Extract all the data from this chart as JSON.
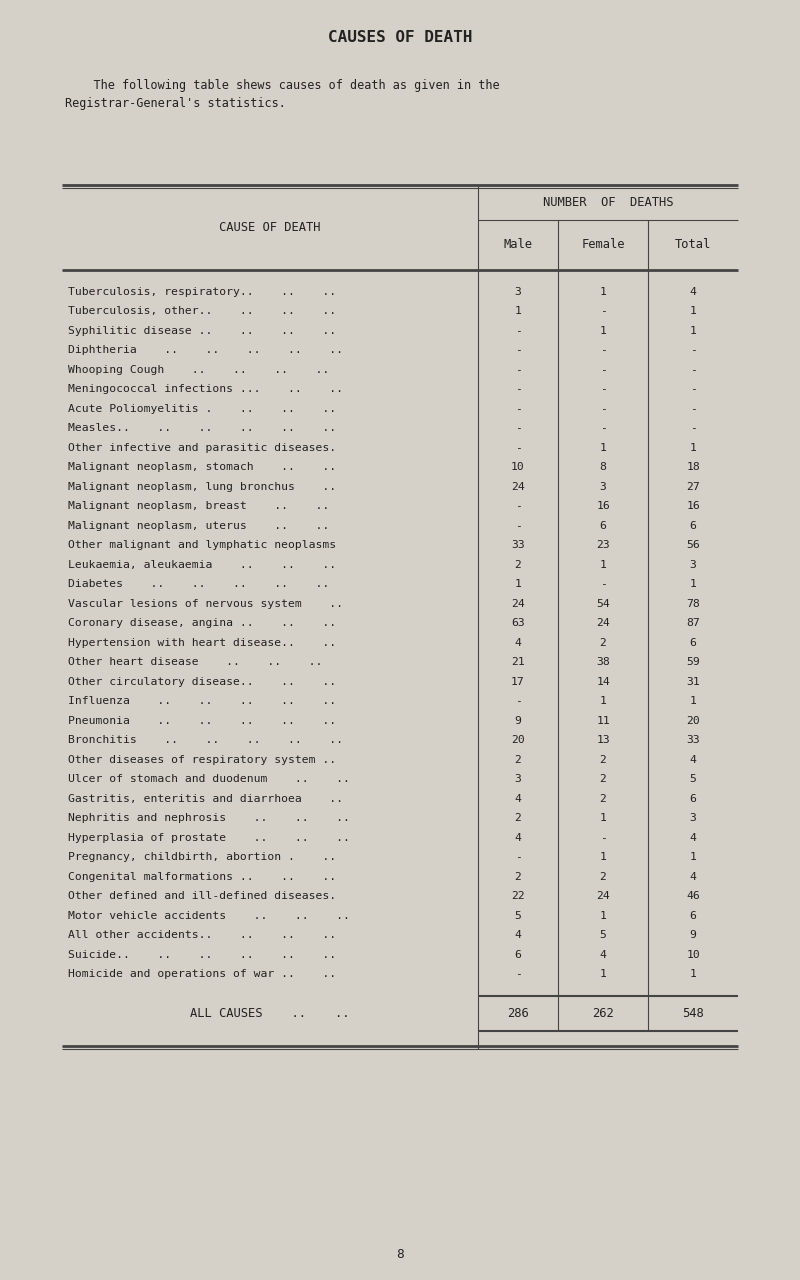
{
  "title": "CAUSES OF DEATH",
  "subtitle_line1": "    The following table shews causes of death as given in the",
  "subtitle_line2": "Registrar-General's statistics.",
  "col_header_top": "NUMBER  OF  DEATHS",
  "col_header_cause": "CAUSE OF DEATH",
  "col_headers": [
    "Male",
    "Female",
    "Total"
  ],
  "rows": [
    [
      "Tuberculosis, respiratory..    ..    ..",
      "3",
      "1",
      "4"
    ],
    [
      "Tuberculosis, other..    ..    ..    ..",
      "1",
      "-",
      "1"
    ],
    [
      "Syphilitic disease ..    ..    ..    ..",
      "-",
      "1",
      "1"
    ],
    [
      "Diphtheria    ..    ..    ..    ..    ..",
      "-",
      "-",
      "-"
    ],
    [
      "Whooping Cough    ..    ..    ..    ..",
      "-",
      "-",
      "-"
    ],
    [
      "Meningococcal infections ...    ..    ..",
      "-",
      "-",
      "-"
    ],
    [
      "Acute Poliomyelitis .    ..    ..    ..",
      "-",
      "-",
      "-"
    ],
    [
      "Measles..    ..    ..    ..    ..    ..",
      "-",
      "-",
      "-"
    ],
    [
      "Other infective and parasitic diseases.",
      "-",
      "1",
      "1"
    ],
    [
      "Malignant neoplasm, stomach    ..    ..",
      "10",
      "8",
      "18"
    ],
    [
      "Malignant neoplasm, lung bronchus    ..",
      "24",
      "3",
      "27"
    ],
    [
      "Malignant neoplasm, breast    ..    ..",
      "-",
      "16",
      "16"
    ],
    [
      "Malignant neoplasm, uterus    ..    ..",
      "-",
      "6",
      "6"
    ],
    [
      "Other malignant and lymphatic neoplasms",
      "33",
      "23",
      "56"
    ],
    [
      "Leukaemia, aleukaemia    ..    ..    ..",
      "2",
      "1",
      "3"
    ],
    [
      "Diabetes    ..    ..    ..    ..    ..",
      "1",
      "-",
      "1"
    ],
    [
      "Vascular lesions of nervous system    ..",
      "24",
      "54",
      "78"
    ],
    [
      "Coronary disease, angina ..    ..    ..",
      "63",
      "24",
      "87"
    ],
    [
      "Hypertension with heart disease..    ..",
      "4",
      "2",
      "6"
    ],
    [
      "Other heart disease    ..    ..    ..",
      "21",
      "38",
      "59"
    ],
    [
      "Other circulatory disease..    ..    ..",
      "17",
      "14",
      "31"
    ],
    [
      "Influenza    ..    ..    ..    ..    ..",
      "-",
      "1",
      "1"
    ],
    [
      "Pneumonia    ..    ..    ..    ..    ..",
      "9",
      "11",
      "20"
    ],
    [
      "Bronchitis    ..    ..    ..    ..    ..",
      "20",
      "13",
      "33"
    ],
    [
      "Other diseases of respiratory system ..",
      "2",
      "2",
      "4"
    ],
    [
      "Ulcer of stomach and duodenum    ..    ..",
      "3",
      "2",
      "5"
    ],
    [
      "Gastritis, enteritis and diarrhoea    ..",
      "4",
      "2",
      "6"
    ],
    [
      "Nephritis and nephrosis    ..    ..    ..",
      "2",
      "1",
      "3"
    ],
    [
      "Hyperplasia of prostate    ..    ..    ..",
      "4",
      "-",
      "4"
    ],
    [
      "Pregnancy, childbirth, abortion .    ..",
      "-",
      "1",
      "1"
    ],
    [
      "Congenital malformations ..    ..    ..",
      "2",
      "2",
      "4"
    ],
    [
      "Other defined and ill-defined diseases.",
      "22",
      "24",
      "46"
    ],
    [
      "Motor vehicle accidents    ..    ..    ..",
      "5",
      "1",
      "6"
    ],
    [
      "All other accidents..    ..    ..    ..",
      "4",
      "5",
      "9"
    ],
    [
      "Suicide..    ..    ..    ..    ..    ..",
      "6",
      "4",
      "10"
    ],
    [
      "Homicide and operations of war ..    ..",
      "-",
      "1",
      "1"
    ]
  ],
  "footer_label": "ALL CAUSES    ..    ..",
  "footer_values": [
    "286",
    "262",
    "548"
  ],
  "page_number": "8",
  "bg_color": "#d5d1c8",
  "text_color": "#222222",
  "line_color": "#444444",
  "font_size": 8.2,
  "title_font_size": 11.5
}
